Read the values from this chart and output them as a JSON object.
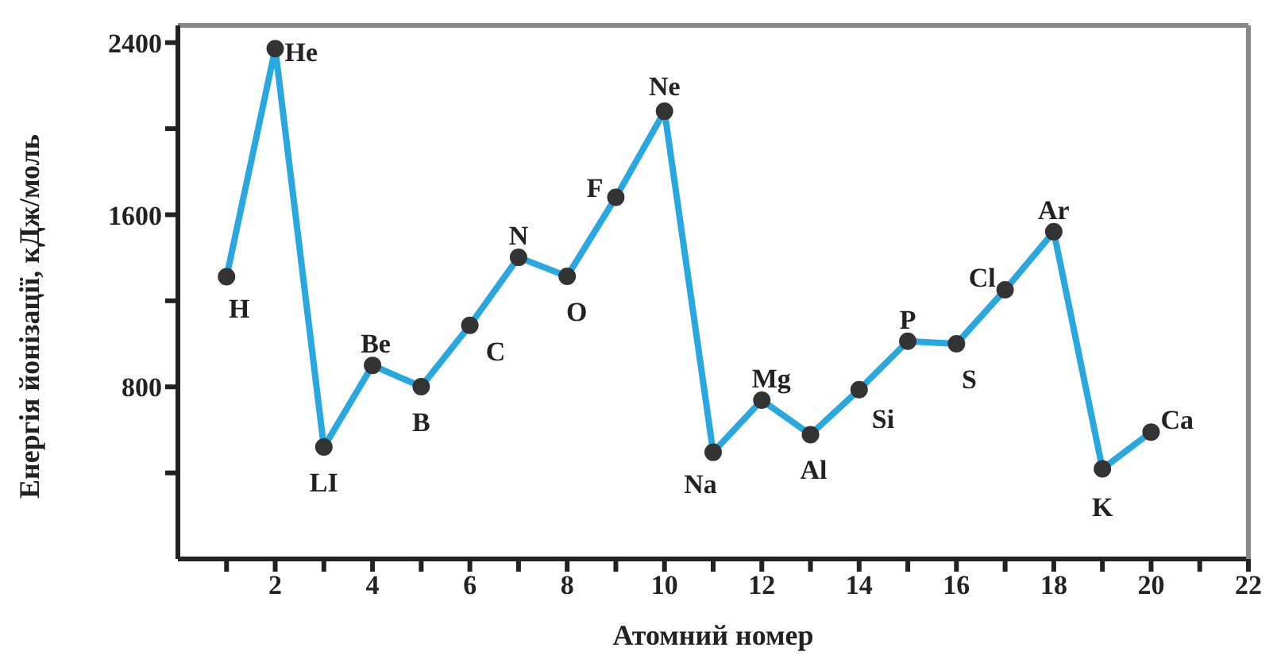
{
  "chart_data": {
    "type": "line",
    "xlabel": "Атомний номер",
    "ylabel": "Енергія йонізації, кДж/моль",
    "x": [
      1,
      2,
      3,
      4,
      5,
      6,
      7,
      8,
      9,
      10,
      11,
      12,
      13,
      14,
      15,
      16,
      17,
      18,
      19,
      20
    ],
    "series": [
      {
        "color": "#29a8e0",
        "values": [
          1312,
          2372,
          520,
          900,
          801,
          1086,
          1402,
          1314,
          1681,
          2081,
          496,
          738,
          578,
          787,
          1012,
          1000,
          1251,
          1521,
          419,
          590
        ]
      }
    ],
    "xlim": [
      0,
      22
    ],
    "xticks": [
      {
        "value": 1,
        "label": null
      },
      2,
      {
        "value": 3,
        "label": null
      },
      4,
      {
        "value": 5,
        "label": null
      },
      6,
      {
        "value": 7,
        "label": null
      },
      8,
      {
        "value": 9,
        "label": null
      },
      10,
      {
        "value": 11,
        "label": null
      },
      12,
      {
        "value": 13,
        "label": null
      },
      14,
      {
        "value": 15,
        "label": null
      },
      16,
      {
        "value": 17,
        "label": null
      },
      18,
      {
        "value": 19,
        "label": null
      },
      20,
      {
        "value": 21,
        "label": null
      },
      22
    ],
    "ylim": [
      0,
      2480
    ],
    "yticks": [
      {
        "value": 400,
        "label": null
      },
      800,
      {
        "value": 1200,
        "label": null
      },
      1600,
      {
        "value": 2000,
        "label": null
      },
      2400
    ],
    "marker": "circle",
    "line_style": "solid",
    "grid": false,
    "legend": false,
    "annotations": [
      {
        "text": "H",
        "x": 1,
        "y": 1312
      },
      {
        "text": "He",
        "x": 2,
        "y": 2372
      },
      {
        "text": "LI",
        "x": 3,
        "y": 520
      },
      {
        "text": "Be",
        "x": 4,
        "y": 900
      },
      {
        "text": "B",
        "x": 5,
        "y": 801
      },
      {
        "text": "C",
        "x": 6,
        "y": 1086
      },
      {
        "text": "N",
        "x": 7,
        "y": 1402
      },
      {
        "text": "O",
        "x": 8,
        "y": 1314
      },
      {
        "text": "F",
        "x": 9,
        "y": 1681
      },
      {
        "text": "Ne",
        "x": 10,
        "y": 2081
      },
      {
        "text": "Na",
        "x": 11,
        "y": 496
      },
      {
        "text": "Mg",
        "x": 12,
        "y": 738
      },
      {
        "text": "Al",
        "x": 13,
        "y": 578
      },
      {
        "text": "Si",
        "x": 14,
        "y": 787
      },
      {
        "text": "P",
        "x": 15,
        "y": 1012
      },
      {
        "text": "S",
        "x": 16,
        "y": 1000
      },
      {
        "text": "Cl",
        "x": 17,
        "y": 1251
      },
      {
        "text": "Ar",
        "x": 18,
        "y": 1521
      },
      {
        "text": "K",
        "x": 19,
        "y": 419
      },
      {
        "text": "Ca",
        "x": 20,
        "y": 590
      }
    ]
  }
}
